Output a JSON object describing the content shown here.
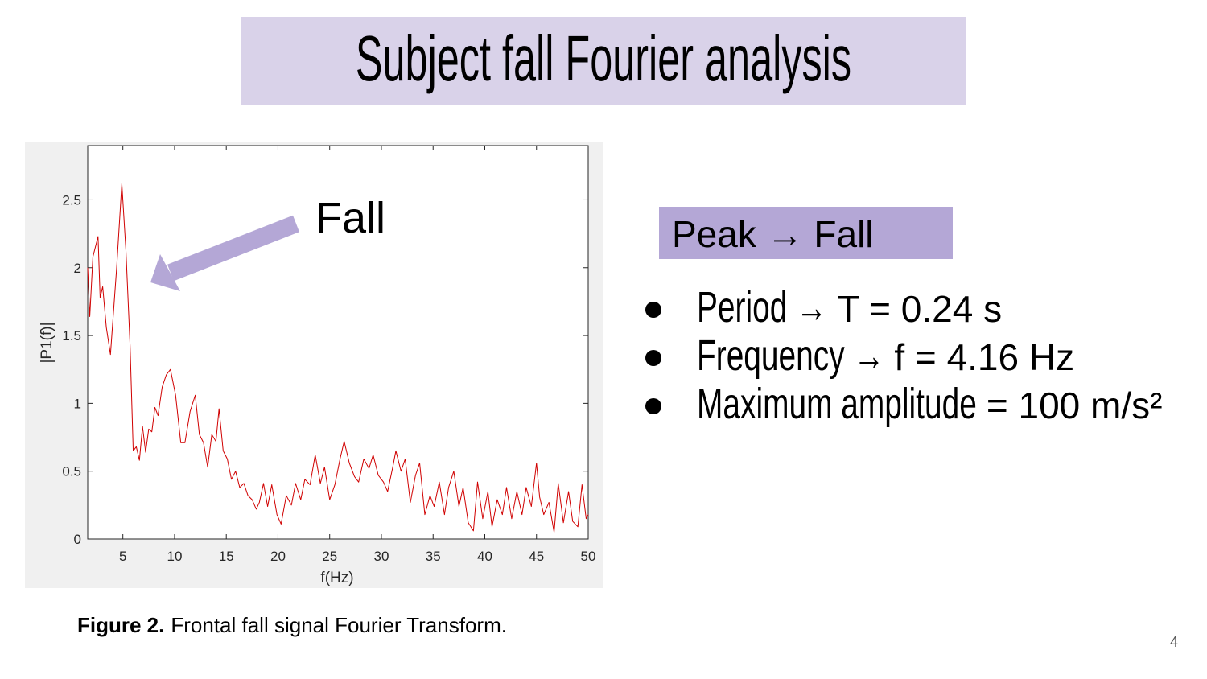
{
  "slide": {
    "title": "Subject fall Fourier analysis",
    "callout": "Peak → Fall",
    "bullets": [
      {
        "term": "Period →",
        "value": "T = 0.24 s"
      },
      {
        "term": "Frequency →",
        "value": "f = 4.16 Hz"
      },
      {
        "term": "Maximum amplitude",
        "value": "= 100 m/s²"
      }
    ],
    "caption": {
      "label": "Figure 2.",
      "text": "Frontal fall signal Fourier Transform."
    },
    "page_number": "4"
  },
  "chart_data": {
    "type": "line",
    "xlabel": "f(Hz)",
    "ylabel": "|P1(f)|",
    "annotation": "Fall",
    "color": "#d00000",
    "xlim": [
      1.6,
      50
    ],
    "ylim": [
      0,
      2.9
    ],
    "xticks": [
      5,
      10,
      15,
      20,
      25,
      30,
      35,
      40,
      45,
      50
    ],
    "yticks": [
      0,
      0.5,
      1,
      1.5,
      2,
      2.5
    ],
    "x": [
      1.6,
      1.8,
      2.1,
      2.6,
      2.8,
      3.05,
      3.4,
      3.8,
      4.4,
      4.9,
      5.3,
      5.7,
      6.0,
      6.3,
      6.6,
      6.9,
      7.2,
      7.5,
      7.8,
      8.1,
      8.4,
      8.8,
      9.2,
      9.6,
      10.1,
      10.6,
      11.0,
      11.5,
      12.0,
      12.4,
      12.8,
      13.2,
      13.6,
      14.0,
      14.3,
      14.7,
      15.1,
      15.5,
      15.9,
      16.3,
      16.7,
      17.1,
      17.5,
      17.9,
      18.2,
      18.6,
      19.0,
      19.4,
      19.9,
      20.3,
      20.8,
      21.3,
      21.7,
      22.2,
      22.6,
      23.1,
      23.6,
      24.1,
      24.5,
      25.0,
      25.5,
      26.0,
      26.4,
      26.9,
      27.4,
      27.8,
      28.3,
      28.8,
      29.2,
      29.7,
      30.2,
      30.6,
      31.1,
      31.4,
      31.9,
      32.3,
      32.8,
      33.3,
      33.7,
      34.2,
      34.7,
      35.1,
      35.6,
      36.1,
      36.5,
      37.0,
      37.5,
      37.9,
      38.4,
      38.9,
      39.3,
      39.8,
      40.3,
      40.7,
      41.2,
      41.7,
      42.1,
      42.6,
      43.1,
      43.6,
      44.0,
      44.5,
      45.0,
      45.3,
      45.7,
      46.2,
      46.7,
      47.1,
      47.6,
      48.1,
      48.5,
      49.0,
      49.4,
      49.8,
      50.0
    ],
    "values": [
      2.0,
      1.64,
      2.08,
      2.23,
      1.78,
      1.86,
      1.56,
      1.36,
      2.0,
      2.62,
      2.12,
      1.42,
      0.65,
      0.68,
      0.58,
      0.83,
      0.64,
      0.81,
      0.79,
      0.97,
      0.91,
      1.12,
      1.21,
      1.25,
      1.06,
      0.71,
      0.71,
      0.94,
      1.06,
      0.77,
      0.71,
      0.53,
      0.77,
      0.72,
      0.96,
      0.65,
      0.59,
      0.44,
      0.5,
      0.38,
      0.41,
      0.32,
      0.29,
      0.22,
      0.27,
      0.41,
      0.24,
      0.4,
      0.18,
      0.11,
      0.32,
      0.25,
      0.41,
      0.29,
      0.44,
      0.4,
      0.62,
      0.41,
      0.53,
      0.29,
      0.4,
      0.59,
      0.72,
      0.56,
      0.46,
      0.42,
      0.59,
      0.52,
      0.62,
      0.47,
      0.42,
      0.35,
      0.53,
      0.65,
      0.5,
      0.59,
      0.27,
      0.47,
      0.56,
      0.18,
      0.32,
      0.24,
      0.42,
      0.18,
      0.38,
      0.5,
      0.24,
      0.38,
      0.12,
      0.06,
      0.42,
      0.15,
      0.35,
      0.09,
      0.29,
      0.18,
      0.38,
      0.15,
      0.35,
      0.18,
      0.38,
      0.24,
      0.56,
      0.31,
      0.18,
      0.27,
      0.05,
      0.41,
      0.12,
      0.35,
      0.13,
      0.09,
      0.4,
      0.15,
      0.18
    ]
  }
}
